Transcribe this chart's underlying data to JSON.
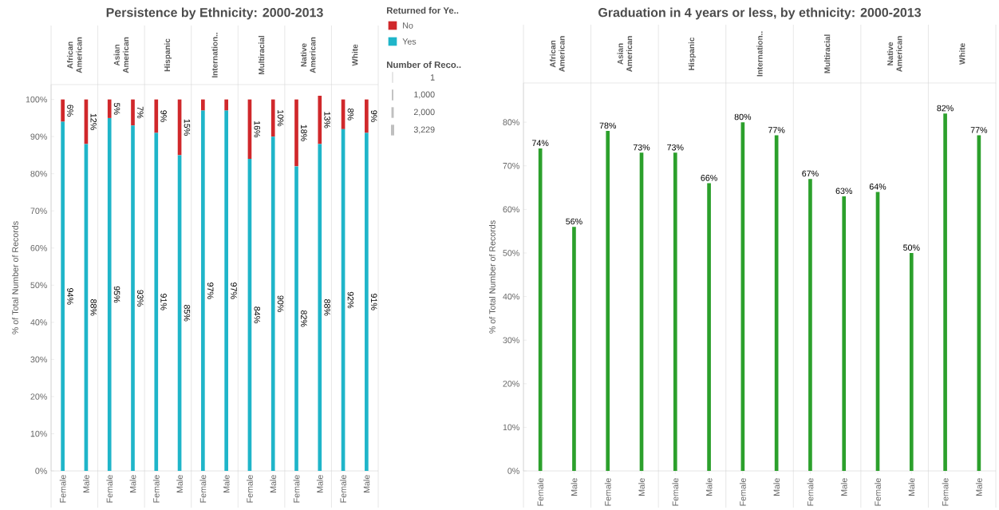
{
  "chart_data": [
    {
      "type": "bar",
      "title": "Persistence by Ethnicity: 2000-2013",
      "ylabel": "% of Total Number of Records",
      "categories": [
        "Female",
        "Male",
        "Female",
        "Male",
        "Female",
        "Male",
        "Female",
        "Male",
        "Female",
        "Male",
        "Female",
        "Male",
        "Female",
        "Male"
      ],
      "stacked": true,
      "legend": "right",
      "legend_title": "Returned for Ye..",
      "series": [
        {
          "name": "Yes",
          "color": "#1fb5c9",
          "values": [
            94,
            88,
            95,
            93,
            91,
            85,
            97,
            97,
            84,
            90,
            82,
            88,
            92,
            91
          ],
          "value_labels": [
            "94%",
            "88%",
            "95%",
            "93%",
            "91%",
            "85%",
            "97%",
            "97%",
            "84%",
            "90%",
            "82%",
            "88%",
            "92%",
            "91%"
          ]
        },
        {
          "name": "No",
          "color": "#d0282b",
          "values": [
            6,
            12,
            5,
            7,
            9,
            15,
            3,
            3,
            16,
            10,
            18,
            13,
            8,
            9
          ],
          "value_labels": [
            "6%",
            "12%",
            "5%",
            "7%",
            "9%",
            "15%",
            null,
            null,
            "16%",
            "10%",
            "18%",
            "13%",
            "8%",
            "9%"
          ]
        }
      ],
      "ylim": [
        0,
        104
      ],
      "yticks": [
        {
          "value": 0,
          "label": "0%"
        },
        {
          "value": 10,
          "label": "10%"
        },
        {
          "value": 20,
          "label": "20%"
        },
        {
          "value": 30,
          "label": "30%"
        },
        {
          "value": 40,
          "label": "40%"
        },
        {
          "value": 50,
          "label": "50%"
        },
        {
          "value": 60,
          "label": "60%"
        },
        {
          "value": 70,
          "label": "70%"
        },
        {
          "value": 80,
          "label": "80%"
        },
        {
          "value": 90,
          "label": "90%"
        },
        {
          "value": 100,
          "label": "100%"
        }
      ],
      "annotations": [
        "African American",
        "Asian American",
        "Hispanic",
        "Internation..",
        "Multiracial",
        "Native American",
        "White",
        "Number of Reco..",
        "1",
        "1,000",
        "2,000",
        "3,229"
      ]
    },
    {
      "type": "bar",
      "title": "Graduation in 4 years or less, by ethnicity: 2000-2013",
      "ylabel": "% of Total Number of Records",
      "categories": [
        "Female",
        "Male",
        "Female",
        "Male",
        "Female",
        "Male",
        "Female",
        "Male",
        "Female",
        "Male",
        "Female",
        "Male",
        "Female",
        "Male"
      ],
      "color": "#2ca02c",
      "values": [
        74,
        56,
        78,
        73,
        73,
        66,
        80,
        77,
        67,
        63,
        64,
        50,
        82,
        77
      ],
      "value_labels": [
        "74%",
        "56%",
        "78%",
        "73%",
        "73%",
        "66%",
        "80%",
        "77%",
        "67%",
        "63%",
        "64%",
        "50%",
        "82%",
        "77%"
      ],
      "ylim": [
        0,
        89
      ],
      "yticks": [
        {
          "value": 0,
          "label": "0%"
        },
        {
          "value": 10,
          "label": "10%"
        },
        {
          "value": 20,
          "label": "20%"
        },
        {
          "value": 30,
          "label": "30%"
        },
        {
          "value": 40,
          "label": "40%"
        },
        {
          "value": 50,
          "label": "50%"
        },
        {
          "value": 60,
          "label": "60%"
        },
        {
          "value": 70,
          "label": "70%"
        },
        {
          "value": 80,
          "label": "80%"
        }
      ],
      "annotations": [
        "African American",
        "Asian American",
        "Hispanic",
        "Internation..",
        "Multiracial",
        "Native American",
        "White"
      ]
    }
  ]
}
